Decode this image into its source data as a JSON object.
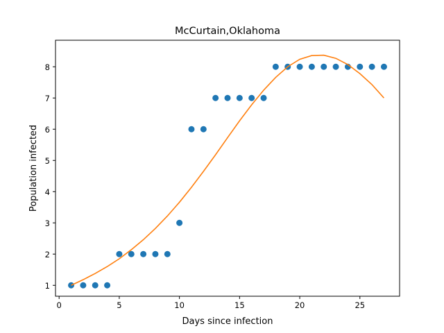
{
  "chart_data": {
    "type": "scatter",
    "title": "McCurtain,Oklahoma",
    "xlabel": "Days since infection",
    "ylabel": "Population infected",
    "xlim": [
      -0.3,
      28.3
    ],
    "ylim": [
      0.65,
      8.85
    ],
    "xticks": [
      0,
      5,
      10,
      15,
      20,
      25
    ],
    "yticks": [
      1,
      2,
      3,
      4,
      5,
      6,
      7,
      8
    ],
    "grid": false,
    "legend": "none",
    "series": [
      {
        "kind": "scatter",
        "color": "#1f77b4",
        "x": [
          1,
          2,
          3,
          4,
          5,
          6,
          7,
          8,
          9,
          10,
          11,
          12,
          13,
          14,
          15,
          16,
          17,
          18,
          19,
          20,
          21,
          22,
          23,
          24,
          25,
          26,
          27
        ],
        "y": [
          1,
          1,
          1,
          1,
          2,
          2,
          2,
          2,
          2,
          3,
          6,
          6,
          7,
          7,
          7,
          7,
          7,
          8,
          8,
          8,
          8,
          8,
          8,
          8,
          8,
          8,
          8
        ]
      },
      {
        "kind": "line",
        "color": "#ff7f0e",
        "x": [
          1,
          2,
          3,
          4,
          5,
          6,
          7,
          8,
          9,
          10,
          11,
          12,
          13,
          14,
          15,
          16,
          17,
          18,
          19,
          20,
          21,
          22,
          23,
          24,
          25,
          26,
          27
        ],
        "y": [
          1.0,
          1.18,
          1.38,
          1.6,
          1.85,
          2.14,
          2.46,
          2.82,
          3.22,
          3.66,
          4.14,
          4.65,
          5.18,
          5.73,
          6.27,
          6.78,
          7.25,
          7.66,
          8.0,
          8.24,
          8.36,
          8.37,
          8.27,
          8.07,
          7.78,
          7.43,
          7.0
        ]
      }
    ]
  }
}
